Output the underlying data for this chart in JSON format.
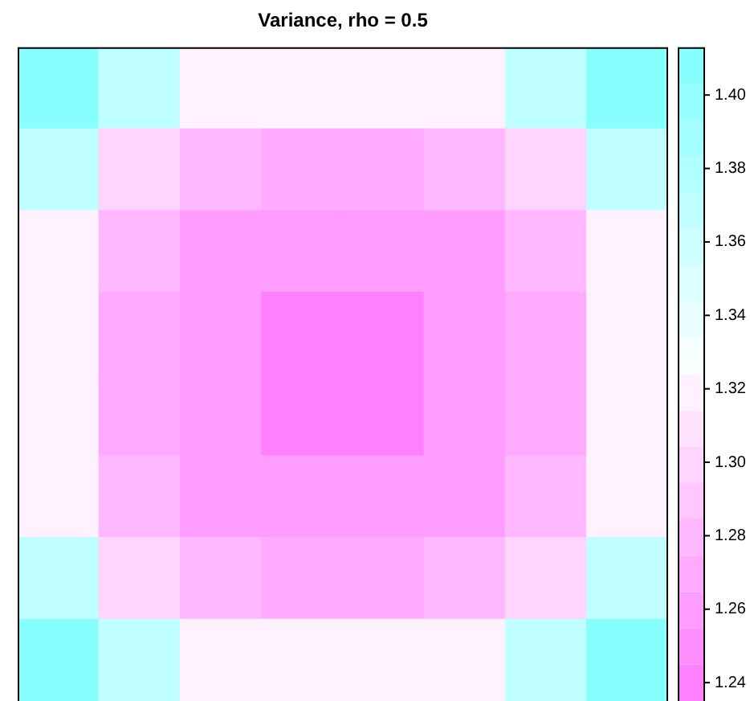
{
  "chart_data": {
    "type": "heatmap",
    "title": "Variance, rho = 0.5",
    "categories": [
      null,
      null,
      null,
      null,
      null,
      null,
      null,
      null
    ],
    "y_categories": [
      null,
      null,
      null,
      null,
      null,
      null,
      null,
      null
    ],
    "cells": [
      [
        1.405,
        1.37,
        1.32,
        1.32,
        1.32,
        1.32,
        1.37,
        1.405
      ],
      [
        1.37,
        1.3,
        1.28,
        1.27,
        1.27,
        1.28,
        1.3,
        1.37
      ],
      [
        1.32,
        1.28,
        1.26,
        1.26,
        1.26,
        1.26,
        1.28,
        1.32
      ],
      [
        1.32,
        1.27,
        1.26,
        1.24,
        1.24,
        1.26,
        1.27,
        1.32
      ],
      [
        1.32,
        1.27,
        1.26,
        1.24,
        1.24,
        1.26,
        1.27,
        1.32
      ],
      [
        1.32,
        1.28,
        1.26,
        1.26,
        1.26,
        1.26,
        1.28,
        1.32
      ],
      [
        1.37,
        1.3,
        1.28,
        1.27,
        1.27,
        1.28,
        1.3,
        1.37
      ],
      [
        1.405,
        1.37,
        1.32,
        1.32,
        1.32,
        1.32,
        1.37,
        1.405
      ]
    ],
    "clim": [
      1.235,
      1.413
    ],
    "cticks": [
      {
        "value": 1.24,
        "label": "1.24"
      },
      {
        "value": 1.26,
        "label": "1.26"
      },
      {
        "value": 1.28,
        "label": "1.28"
      },
      {
        "value": 1.3,
        "label": "1.30"
      },
      {
        "value": 1.32,
        "label": "1.32"
      },
      {
        "value": 1.34,
        "label": "1.34"
      },
      {
        "value": 1.36,
        "label": "1.36"
      },
      {
        "value": 1.38,
        "label": "1.38"
      },
      {
        "value": 1.4,
        "label": "1.40"
      }
    ]
  }
}
